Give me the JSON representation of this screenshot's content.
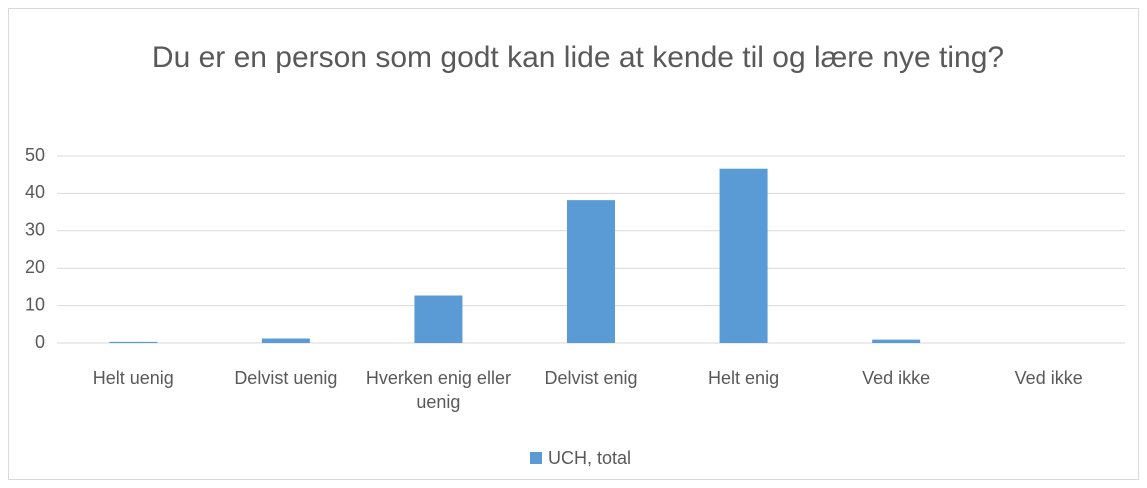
{
  "chart_data": {
    "type": "bar",
    "title": "Du er en person som godt kan lide at kende til og lære nye ting?",
    "categories": [
      "Helt uenig",
      "Delvist uenig",
      "Hverken enig eller uenig",
      "Delvist enig",
      "Helt enig",
      "Ved ikke",
      "Ved ikke"
    ],
    "series": [
      {
        "name": "UCH, total",
        "color": "#5b9bd5",
        "values": [
          0.3,
          1.2,
          12.7,
          38.2,
          46.6,
          0.9,
          0
        ]
      }
    ],
    "ylim": [
      0,
      50
    ],
    "yticks": [
      0,
      10,
      20,
      30,
      40,
      50
    ],
    "grid": true,
    "legend": "bottom"
  }
}
